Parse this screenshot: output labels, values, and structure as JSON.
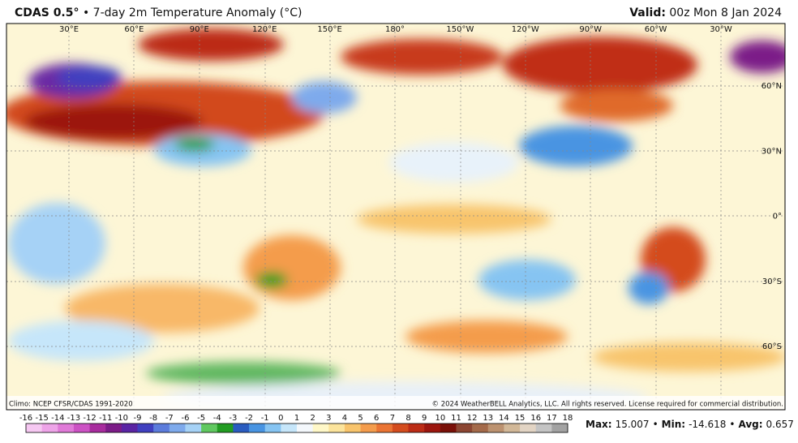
{
  "header": {
    "title_bold": "CDAS 0.5°",
    "title_rest": "• 7-day 2m Temperature Anomaly (°C)",
    "valid_label": "Valid:",
    "valid_value": "00z Mon 8 Jan 2024"
  },
  "map": {
    "longitude_labels": [
      "30°E",
      "60°E",
      "90°E",
      "120°E",
      "150°E",
      "180°",
      "150°W",
      "120°W",
      "90°W",
      "60°W",
      "30°W"
    ],
    "latitude_labels": [
      "60°N",
      "30°N",
      "0°",
      "30°S",
      "60°S"
    ]
  },
  "footer": {
    "climo": "Climo: NCEP CFSR/CDAS 1991-2020",
    "copyright": "© 2024 WeatherBELL Analytics, LLC. All rights reserved. License required for commercial distribution."
  },
  "colorbar": {
    "labels": [
      -16,
      -15,
      -14,
      -13,
      -12,
      -11,
      -10,
      -9,
      -8,
      -7,
      -6,
      -5,
      -4,
      -3,
      -2,
      -1,
      0,
      1,
      2,
      3,
      4,
      5,
      6,
      7,
      8,
      9,
      10,
      11,
      12,
      13,
      14,
      15,
      16,
      17,
      18
    ],
    "colors": [
      "#f6c8f2",
      "#eea4e8",
      "#e07ad8",
      "#cc52c4",
      "#a82c9e",
      "#7c1c88",
      "#5a24a4",
      "#4040c0",
      "#5c7cdc",
      "#7eaaec",
      "#a6d2f6",
      "#60c860",
      "#229c22",
      "#2a5cc0",
      "#4894e2",
      "#86c4f2",
      "#c6e6fa",
      "#f4f8fc",
      "#fff8c8",
      "#fce49c",
      "#f8c46c",
      "#f49c4c",
      "#ea7434",
      "#d44c1e",
      "#bc2c16",
      "#9c160e",
      "#7a1008",
      "#8c4632",
      "#a46a4a",
      "#bc9270",
      "#d2b898",
      "#e2d4c4",
      "#c4c4c4",
      "#a2a2a2"
    ]
  },
  "stats": {
    "separator": "•",
    "items": [
      {
        "label": "Max:",
        "value": 15.007
      },
      {
        "label": "Min:",
        "value": -14.618
      },
      {
        "label": "Avg:",
        "value": 0.657
      }
    ]
  }
}
